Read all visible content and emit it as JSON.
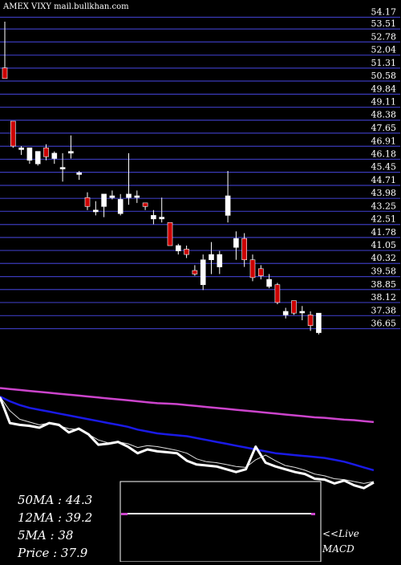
{
  "chart_data": {
    "type": "candlestick",
    "title": "AMEX  VIXY mail.bullkhan.com",
    "y_ticks": [
      "54.17",
      "53.51",
      "52.78",
      "52.04",
      "51.31",
      "50.58",
      "49.84",
      "49.11",
      "48.38",
      "47.65",
      "46.91",
      "46.18",
      "45.45",
      "44.71",
      "43.98",
      "43.25",
      "42.51",
      "41.78",
      "41.05",
      "40.32",
      "39.58",
      "38.85",
      "38.12",
      "37.38",
      "36.65"
    ],
    "ylim": [
      36.65,
      54.17
    ],
    "grid": true,
    "candles": [
      {
        "o": 51.3,
        "h": 53.9,
        "l": 50.8,
        "c": 50.7,
        "color": "red"
      },
      {
        "o": 48.3,
        "h": 48.3,
        "l": 46.8,
        "c": 46.9,
        "color": "red"
      },
      {
        "o": 46.8,
        "h": 46.9,
        "l": 46.4,
        "c": 46.7,
        "color": "white"
      },
      {
        "o": 46.8,
        "h": 46.8,
        "l": 45.9,
        "c": 46.1,
        "color": "white"
      },
      {
        "o": 46.6,
        "h": 46.6,
        "l": 45.8,
        "c": 45.9,
        "color": "white"
      },
      {
        "o": 46.3,
        "h": 47.0,
        "l": 46.1,
        "c": 46.8,
        "color": "red"
      },
      {
        "o": 46.5,
        "h": 46.6,
        "l": 45.9,
        "c": 46.2,
        "color": "white"
      },
      {
        "o": 45.7,
        "h": 46.5,
        "l": 44.9,
        "c": 45.7,
        "color": "white"
      },
      {
        "o": 46.5,
        "h": 47.5,
        "l": 46.2,
        "c": 46.6,
        "color": "white"
      },
      {
        "o": 45.4,
        "h": 45.5,
        "l": 45.0,
        "c": 45.3,
        "color": "white"
      },
      {
        "o": 44.0,
        "h": 44.3,
        "l": 43.3,
        "c": 43.5,
        "color": "red"
      },
      {
        "o": 43.3,
        "h": 43.8,
        "l": 43.0,
        "c": 43.2,
        "color": "white"
      },
      {
        "o": 43.5,
        "h": 44.2,
        "l": 42.9,
        "c": 44.2,
        "color": "white"
      },
      {
        "o": 44.1,
        "h": 44.4,
        "l": 43.9,
        "c": 44.0,
        "color": "white"
      },
      {
        "o": 43.9,
        "h": 44.2,
        "l": 43.0,
        "c": 43.1,
        "color": "white"
      },
      {
        "o": 44.2,
        "h": 46.5,
        "l": 43.6,
        "c": 44.0,
        "color": "white"
      },
      {
        "o": 44.1,
        "h": 44.4,
        "l": 43.7,
        "c": 44.1,
        "color": "white"
      },
      {
        "o": 43.5,
        "h": 43.7,
        "l": 43.3,
        "c": 43.7,
        "color": "red"
      },
      {
        "o": 42.8,
        "h": 43.3,
        "l": 42.5,
        "c": 43.0,
        "color": "white"
      },
      {
        "o": 42.9,
        "h": 44.0,
        "l": 42.6,
        "c": 42.8,
        "color": "white"
      },
      {
        "o": 42.6,
        "h": 42.6,
        "l": 41.3,
        "c": 41.3,
        "color": "red"
      },
      {
        "o": 41.3,
        "h": 41.4,
        "l": 40.8,
        "c": 41.0,
        "color": "white"
      },
      {
        "o": 41.1,
        "h": 41.3,
        "l": 40.6,
        "c": 40.8,
        "color": "red"
      },
      {
        "o": 39.9,
        "h": 40.2,
        "l": 39.6,
        "c": 39.7,
        "color": "red"
      },
      {
        "o": 39.1,
        "h": 40.8,
        "l": 38.8,
        "c": 40.5,
        "color": "white"
      },
      {
        "o": 40.5,
        "h": 41.5,
        "l": 39.7,
        "c": 40.8,
        "color": "white"
      },
      {
        "o": 40.1,
        "h": 41.0,
        "l": 39.7,
        "c": 40.8,
        "color": "white"
      },
      {
        "o": 43.0,
        "h": 45.5,
        "l": 42.6,
        "c": 44.1,
        "color": "white"
      },
      {
        "o": 41.2,
        "h": 42.1,
        "l": 40.5,
        "c": 41.7,
        "color": "white"
      },
      {
        "o": 41.7,
        "h": 42.0,
        "l": 40.1,
        "c": 40.5,
        "color": "red"
      },
      {
        "o": 40.5,
        "h": 40.8,
        "l": 39.3,
        "c": 39.5,
        "color": "red"
      },
      {
        "o": 40.0,
        "h": 40.2,
        "l": 39.4,
        "c": 39.6,
        "color": "red"
      },
      {
        "o": 39.4,
        "h": 39.7,
        "l": 38.9,
        "c": 39.0,
        "color": "white"
      },
      {
        "o": 39.1,
        "h": 39.2,
        "l": 38.0,
        "c": 38.1,
        "color": "red"
      },
      {
        "o": 37.4,
        "h": 37.8,
        "l": 37.2,
        "c": 37.6,
        "color": "white"
      },
      {
        "o": 38.2,
        "h": 38.2,
        "l": 37.4,
        "c": 37.5,
        "color": "red"
      },
      {
        "o": 37.6,
        "h": 37.9,
        "l": 37.1,
        "c": 37.6,
        "color": "white"
      },
      {
        "o": 37.4,
        "h": 37.6,
        "l": 36.5,
        "c": 36.8,
        "color": "red"
      },
      {
        "o": 36.4,
        "h": 37.5,
        "l": 36.3,
        "c": 37.5,
        "color": "white"
      }
    ],
    "moving_averages": {
      "ma50": [
        47.9,
        47.8,
        47.7,
        47.6,
        47.5,
        47.4,
        47.3,
        47.2,
        47.1,
        47.0,
        46.9,
        46.8,
        46.7,
        46.6,
        46.5,
        46.4,
        46.3,
        46.25,
        46.2,
        46.1,
        46.0,
        45.9,
        45.8,
        45.7,
        45.6,
        45.5,
        45.4,
        45.3,
        45.2,
        45.1,
        45.0,
        44.9,
        44.8,
        44.75,
        44.65,
        44.55,
        44.5,
        44.4,
        44.3
      ],
      "ma12": [
        47.0,
        46.5,
        46.1,
        45.8,
        45.6,
        45.4,
        45.2,
        45.0,
        44.8,
        44.6,
        44.4,
        44.2,
        44.0,
        43.8,
        43.5,
        43.3,
        43.1,
        43.0,
        42.9,
        42.8,
        42.6,
        42.4,
        42.2,
        42.0,
        41.8,
        41.6,
        41.4,
        41.2,
        41.0,
        40.9,
        40.8,
        40.7,
        40.6,
        40.5,
        40.3,
        40.1,
        39.8,
        39.5,
        39.2
      ],
      "ma5": [
        47.0,
        45.5,
        44.6,
        44.3,
        44.0,
        44.2,
        43.9,
        43.6,
        43.5,
        43.0,
        42.4,
        42.1,
        42.2,
        42.0,
        41.6,
        41.8,
        41.7,
        41.5,
        41.3,
        41.0,
        40.4,
        40.1,
        40.0,
        39.8,
        39.6,
        39.5,
        40.3,
        40.8,
        40.2,
        39.7,
        39.5,
        39.2,
        38.8,
        38.6,
        38.3,
        38.2,
        38.0,
        37.8,
        38.0
      ],
      "price": [
        46.9,
        44.2,
        44.0,
        43.9,
        43.7,
        44.2,
        44.0,
        43.2,
        43.6,
        43.0,
        41.9,
        42.0,
        42.2,
        41.7,
        41.0,
        41.4,
        41.2,
        41.1,
        41.0,
        40.2,
        39.8,
        39.7,
        39.6,
        39.3,
        39.0,
        39.3,
        41.7,
        40.0,
        39.6,
        39.3,
        39.0,
        38.8,
        38.3,
        38.2,
        37.8,
        38.1,
        37.6,
        37.3,
        37.9
      ]
    },
    "macd_panel": {
      "line_value": 0.6
    },
    "stats": {
      "ma50_label": "50MA : 44.3",
      "ma12_label": "12MA : 39.2",
      "ma5_label": "5MA : 38",
      "price_label": "Price   : 37.9"
    },
    "macd_live_label": "<<Live",
    "macd_label": "MACD"
  },
  "colors": {
    "background": "#000000",
    "grid": "#3a3ab8",
    "bull_candle": "#ffffff",
    "bear_candle": "#cc0000",
    "ma50": "#cc44cc",
    "ma12": "#1a1ae6",
    "ma5": "#dddddd",
    "price": "#ffffff",
    "macd_line": "#ffffff",
    "macd_marker": "#cc44cc"
  }
}
